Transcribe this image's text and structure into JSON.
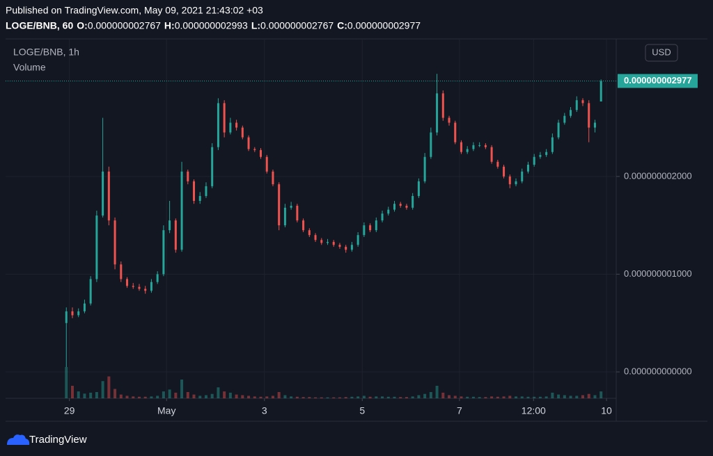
{
  "header": {
    "published": "Published on TradingView.com, May 09, 2021 21:43:02 +03",
    "symbol": "LOGE/BNB, 60",
    "ohlc": [
      {
        "label": "O:",
        "value": "0.000000002767"
      },
      {
        "label": "H:",
        "value": "0.000000002993"
      },
      {
        "label": "L:",
        "value": "0.000000002767"
      },
      {
        "label": "C:",
        "value": "0.000000002977"
      }
    ]
  },
  "chart_data": {
    "type": "candlestick",
    "title": "LOGE/BNB, 1h",
    "volume_label": "Volume",
    "currency": "USD",
    "up_color": "#26a69a",
    "down_color": "#ef5350",
    "ylim": [
      -2.7e-10,
      3.4e-09
    ],
    "yticks": [
      {
        "value": 0,
        "label": "0.000000000000"
      },
      {
        "value": 1e-09,
        "label": "0.000000001000"
      },
      {
        "value": 2e-09,
        "label": "0.000000002000"
      }
    ],
    "xlim": [
      -10,
      90.5
    ],
    "xticks": [
      {
        "value": 0.5,
        "label": "29"
      },
      {
        "value": 16.5,
        "label": "May"
      },
      {
        "value": 32.6,
        "label": "3"
      },
      {
        "value": 48.7,
        "label": "5"
      },
      {
        "value": 64.7,
        "label": "7"
      },
      {
        "value": 76.9,
        "label": "12:00"
      },
      {
        "value": 88.9,
        "label": "10"
      }
    ],
    "grid": true,
    "last_value_label": "0.000000002977",
    "open": [
      5e-10,
      6.2e-10,
      5.8e-10,
      6.2e-10,
      7e-10,
      9.5e-10,
      1.6e-09,
      2.05e-09,
      1.55e-09,
      1.1e-09,
      9.5e-10,
      8.8e-10,
      8.7e-10,
      8.5e-10,
      8.3e-10,
      9.2e-10,
      1e-09,
      1.45e-09,
      1.55e-09,
      1.25e-09,
      2.05e-09,
      1.95e-09,
      1.75e-09,
      1.8e-09,
      1.9e-09,
      2.3e-09,
      2.75e-09,
      2.45e-09,
      2.55e-09,
      2.5e-09,
      2.4e-09,
      2.28e-09,
      2.27e-09,
      2.2e-09,
      2.05e-09,
      1.92e-09,
      1.5e-09,
      1.68e-09,
      1.7e-09,
      1.55e-09,
      1.45e-09,
      1.4e-09,
      1.35e-09,
      1.32e-09,
      1.33e-09,
      1.3e-09,
      1.28e-09,
      1.25e-09,
      1.3e-09,
      1.4e-09,
      1.5e-09,
      1.45e-09,
      1.55e-09,
      1.62e-09,
      1.66e-09,
      1.72e-09,
      1.7e-09,
      1.68e-09,
      1.8e-09,
      1.95e-09,
      2.2e-09,
      2.45e-09,
      2.85e-09,
      2.6e-09,
      2.55e-09,
      2.35e-09,
      2.25e-09,
      2.28e-09,
      2.32e-09,
      2.32e-09,
      2.3e-09,
      2.15e-09,
      2.1e-09,
      2e-09,
      1.92e-09,
      1.95e-09,
      2.05e-09,
      2.12e-09,
      2.2e-09,
      2.22e-09,
      2.25e-09,
      2.4e-09,
      2.55e-09,
      2.62e-09,
      2.68e-09,
      2.78e-09,
      2.75e-09,
      2.5e-09,
      2.767e-09
    ],
    "high": [
      6.6e-10,
      6.6e-10,
      6.5e-10,
      7.4e-10,
      9.8e-10,
      1.65e-09,
      2.6e-09,
      2.1e-09,
      1.58e-09,
      1.13e-09,
      9.7e-10,
      9.1e-10,
      9e-10,
      8.8e-10,
      9.5e-10,
      1.03e-09,
      1.5e-09,
      1.75e-09,
      1.57e-09,
      2.15e-09,
      2.07e-09,
      1.97e-09,
      1.84e-09,
      1.94e-09,
      2.34e-09,
      2.8e-09,
      2.78e-09,
      2.6e-09,
      2.58e-09,
      2.52e-09,
      2.42e-09,
      2.3e-09,
      2.29e-09,
      2.22e-09,
      2.07e-09,
      1.94e-09,
      1.72e-09,
      1.74e-09,
      1.72e-09,
      1.57e-09,
      1.47e-09,
      1.42e-09,
      1.37e-09,
      1.36e-09,
      1.35e-09,
      1.32e-09,
      1.3e-09,
      1.33e-09,
      1.43e-09,
      1.53e-09,
      1.52e-09,
      1.58e-09,
      1.65e-09,
      1.69e-09,
      1.75e-09,
      1.74e-09,
      1.72e-09,
      1.83e-09,
      1.98e-09,
      2.24e-09,
      2.5e-09,
      3.05e-09,
      2.88e-09,
      2.62e-09,
      2.57e-09,
      2.37e-09,
      2.31e-09,
      2.35e-09,
      2.35e-09,
      2.34e-09,
      2.32e-09,
      2.17e-09,
      2.12e-09,
      2.02e-09,
      1.98e-09,
      2.08e-09,
      2.15e-09,
      2.23e-09,
      2.25e-09,
      2.28e-09,
      2.44e-09,
      2.58e-09,
      2.65e-09,
      2.71e-09,
      2.82e-09,
      2.8e-09,
      2.78e-09,
      2.58e-09,
      2.993e-09
    ],
    "low": [
      5e-11,
      5.5e-10,
      5.6e-10,
      6e-10,
      6.8e-10,
      9.2e-10,
      1.58e-09,
      1.5e-09,
      1.05e-09,
      9.2e-10,
      8.6e-10,
      8.5e-10,
      8.3e-10,
      8e-10,
      8.1e-10,
      9e-10,
      9.8e-10,
      1.42e-09,
      1.22e-09,
      1.23e-09,
      1.92e-09,
      1.72e-09,
      1.72e-09,
      1.78e-09,
      1.88e-09,
      2.27e-09,
      2.4e-09,
      2.43e-09,
      2.47e-09,
      2.38e-09,
      2.26e-09,
      2.25e-09,
      2.18e-09,
      2.03e-09,
      1.9e-09,
      1.45e-09,
      1.48e-09,
      1.66e-09,
      1.53e-09,
      1.43e-09,
      1.38e-09,
      1.33e-09,
      1.3e-09,
      1.3e-09,
      1.28e-09,
      1.26e-09,
      1.22e-09,
      1.23e-09,
      1.28e-09,
      1.38e-09,
      1.43e-09,
      1.43e-09,
      1.53e-09,
      1.6e-09,
      1.64e-09,
      1.68e-09,
      1.66e-09,
      1.66e-09,
      1.78e-09,
      1.93e-09,
      2.18e-09,
      2.42e-09,
      2.57e-09,
      2.52e-09,
      2.33e-09,
      2.23e-09,
      2.23e-09,
      2.26e-09,
      2.3e-09,
      2.28e-09,
      2.13e-09,
      2.08e-09,
      1.98e-09,
      1.88e-09,
      1.9e-09,
      1.93e-09,
      2.03e-09,
      2.1e-09,
      2.18e-09,
      2.2e-09,
      2.23e-09,
      2.38e-09,
      2.53e-09,
      2.6e-09,
      2.66e-09,
      2.72e-09,
      2.35e-09,
      2.45e-09,
      2.767e-09
    ],
    "close": [
      6.2e-10,
      5.8e-10,
      6.2e-10,
      7e-10,
      9.5e-10,
      1.6e-09,
      2.05e-09,
      1.55e-09,
      1.1e-09,
      9.5e-10,
      8.8e-10,
      8.7e-10,
      8.5e-10,
      8.3e-10,
      9.2e-10,
      1e-09,
      1.45e-09,
      1.55e-09,
      1.25e-09,
      2.05e-09,
      1.95e-09,
      1.75e-09,
      1.8e-09,
      1.9e-09,
      2.3e-09,
      2.75e-09,
      2.45e-09,
      2.55e-09,
      2.5e-09,
      2.4e-09,
      2.28e-09,
      2.27e-09,
      2.2e-09,
      2.05e-09,
      1.92e-09,
      1.5e-09,
      1.68e-09,
      1.7e-09,
      1.55e-09,
      1.45e-09,
      1.4e-09,
      1.35e-09,
      1.32e-09,
      1.33e-09,
      1.3e-09,
      1.28e-09,
      1.25e-09,
      1.3e-09,
      1.4e-09,
      1.5e-09,
      1.45e-09,
      1.55e-09,
      1.62e-09,
      1.66e-09,
      1.72e-09,
      1.7e-09,
      1.68e-09,
      1.8e-09,
      1.95e-09,
      2.2e-09,
      2.45e-09,
      2.85e-09,
      2.6e-09,
      2.55e-09,
      2.35e-09,
      2.25e-09,
      2.28e-09,
      2.32e-09,
      2.32e-09,
      2.3e-09,
      2.15e-09,
      2.1e-09,
      2e-09,
      1.92e-09,
      1.95e-09,
      2.05e-09,
      2.12e-09,
      2.2e-09,
      2.22e-09,
      2.25e-09,
      2.4e-09,
      2.55e-09,
      2.62e-09,
      2.68e-09,
      2.78e-09,
      2.75e-09,
      2.5e-09,
      2.55e-09,
      2.977e-09
    ],
    "volume": [
      100,
      40,
      22,
      15,
      18,
      20,
      55,
      70,
      30,
      12,
      8,
      6,
      5,
      5,
      6,
      8,
      22,
      28,
      18,
      60,
      20,
      12,
      8,
      10,
      14,
      35,
      22,
      18,
      12,
      10,
      8,
      6,
      5,
      6,
      8,
      20,
      10,
      6,
      5,
      4,
      4,
      3,
      3,
      3,
      3,
      3,
      4,
      5,
      6,
      8,
      5,
      6,
      6,
      5,
      5,
      4,
      4,
      6,
      10,
      14,
      20,
      40,
      18,
      10,
      8,
      6,
      5,
      5,
      4,
      4,
      6,
      5,
      6,
      8,
      6,
      6,
      5,
      5,
      5,
      6,
      18,
      12,
      10,
      8,
      8,
      10,
      14,
      10,
      22
    ]
  }
}
